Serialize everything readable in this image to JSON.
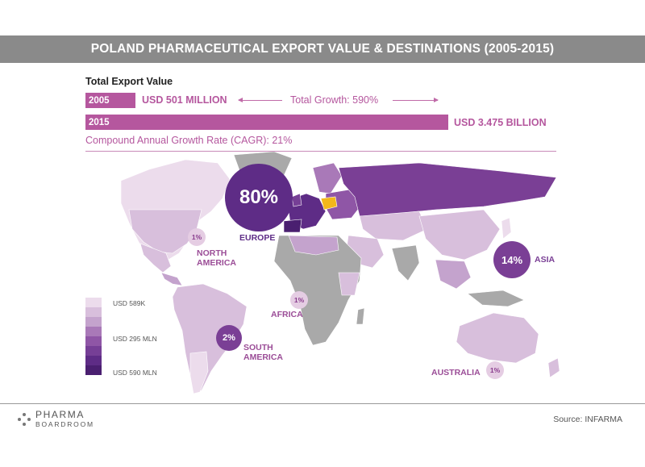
{
  "header": {
    "title": "POLAND PHARMACEUTICAL EXPORT VALUE & DESTINATIONS (2005-2015)"
  },
  "export": {
    "label": "Total Export Value",
    "year_2005": "2005",
    "value_2005": "USD 501 MILLION",
    "growth": "Total Growth: 590%",
    "year_2015": "2015",
    "value_2015": "USD 3.475 BILLION",
    "cagr": "Compound Annual Growth Rate (CAGR): 21%"
  },
  "regions": {
    "europe": {
      "pct": "80%",
      "label": "EUROPE"
    },
    "north_america": {
      "pct": "1%",
      "label_line1": "NORTH",
      "label_line2": "AMERICA"
    },
    "asia": {
      "pct": "14%",
      "label": "ASIA"
    },
    "africa": {
      "pct": "1%",
      "label": "AFRICA"
    },
    "south_america": {
      "pct": "2%",
      "label_line1": "SOUTH",
      "label_line2": "AMERICA"
    },
    "australia": {
      "pct": "1%",
      "label": "AUSTRALIA"
    }
  },
  "legend": {
    "min": "USD 589K",
    "mid": "USD 295 MLN",
    "max": "USD 590 MLN",
    "swatches": [
      "#ecdcec",
      "#d8bfdc",
      "#c4a3cd",
      "#a979b8",
      "#8f56a6",
      "#763f96",
      "#5e2c86",
      "#4a1f70"
    ]
  },
  "footer": {
    "logo_line1": "PHARMA",
    "logo_line2": "BOARDROOM",
    "source": "Source: INFARMA"
  },
  "colors": {
    "accent": "#b5579e",
    "europe": "#5e2c86",
    "poland": "#f2b71b",
    "land_gray": "#a9a9a9",
    "land_light": "#d8bfdc"
  }
}
